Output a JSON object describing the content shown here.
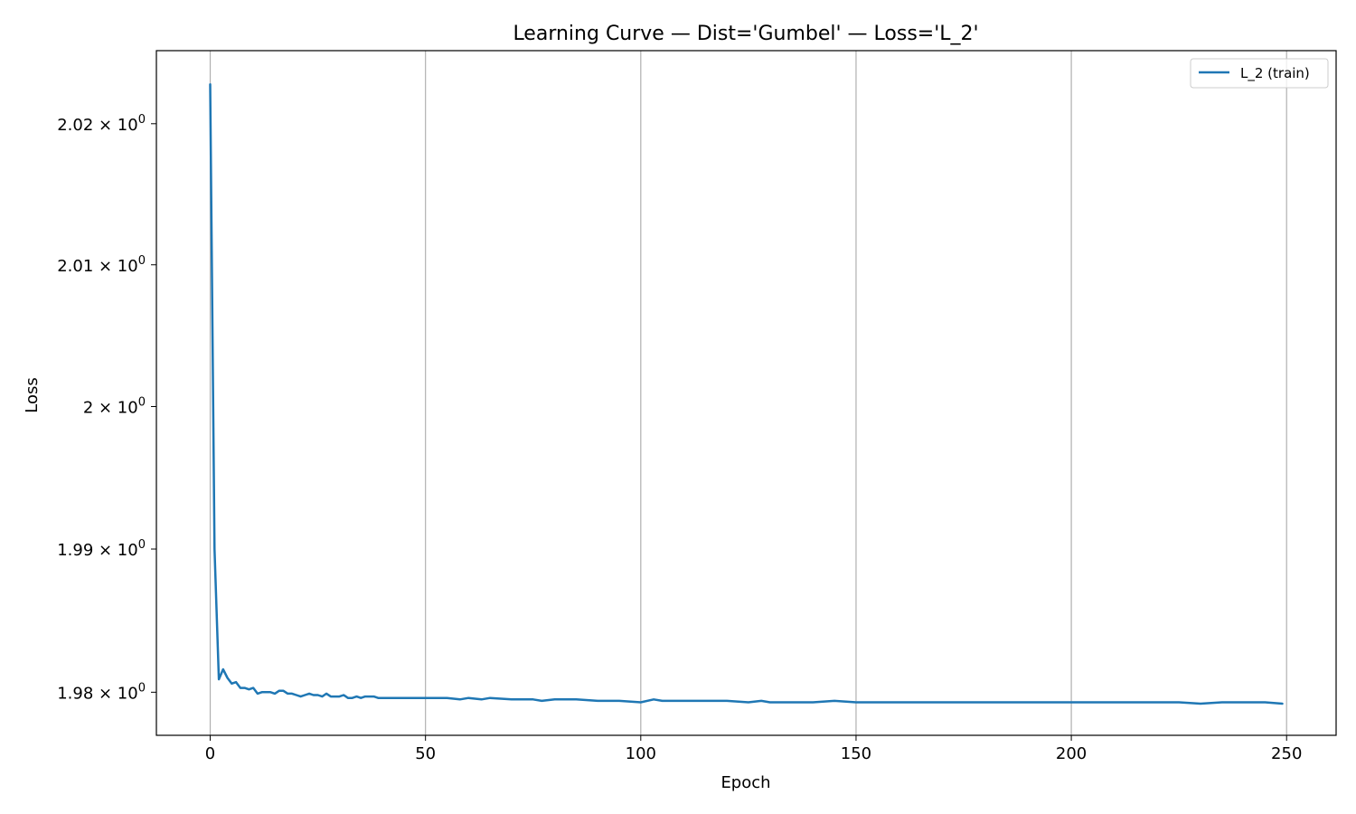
{
  "chart_data": {
    "type": "line",
    "title": "Learning Curve — Dist='Gumbel' — Loss='L_2'",
    "xlabel": "Epoch",
    "ylabel": "Loss",
    "xlim": [
      -12.5,
      261.5
    ],
    "ylim": [
      1.977,
      2.0252
    ],
    "yscale": "log",
    "grid": "x-major",
    "legend_location": "upper right",
    "x_ticks": [
      0,
      50,
      100,
      150,
      200,
      250
    ],
    "x_tick_labels": [
      "0",
      "50",
      "100",
      "150",
      "200",
      "250"
    ],
    "y_ticks": [
      1.98,
      1.99,
      2.0,
      2.01,
      2.02
    ],
    "y_tick_labels": [
      {
        "mantissa": "1.98",
        "base": "10",
        "exp": "0"
      },
      {
        "mantissa": "1.99",
        "base": "10",
        "exp": "0"
      },
      {
        "mantissa": "2",
        "base": "10",
        "exp": "0"
      },
      {
        "mantissa": "2.01",
        "base": "10",
        "exp": "0"
      },
      {
        "mantissa": "2.02",
        "base": "10",
        "exp": "0"
      }
    ],
    "colors": {
      "series": "#1f77b4",
      "grid": "#b0b0b0"
    },
    "series": [
      {
        "name": "L_2 (train)",
        "x": [
          0,
          1,
          2,
          3,
          4,
          5,
          6,
          7,
          8,
          9,
          10,
          11,
          12,
          13,
          14,
          15,
          16,
          17,
          18,
          19,
          20,
          21,
          22,
          23,
          24,
          25,
          26,
          27,
          28,
          29,
          30,
          31,
          32,
          33,
          34,
          35,
          36,
          37,
          38,
          39,
          40,
          45,
          50,
          55,
          58,
          60,
          63,
          65,
          70,
          75,
          77,
          80,
          85,
          90,
          95,
          100,
          103,
          105,
          110,
          115,
          120,
          125,
          128,
          130,
          140,
          145,
          150,
          155,
          160,
          165,
          170,
          175,
          180,
          185,
          190,
          195,
          200,
          205,
          210,
          215,
          220,
          225,
          230,
          235,
          240,
          245,
          249
        ],
        "y": [
          2.0228,
          1.99,
          1.9809,
          1.9816,
          1.981,
          1.9806,
          1.9807,
          1.9803,
          1.9803,
          1.9802,
          1.9803,
          1.9799,
          1.98,
          1.98,
          1.98,
          1.9799,
          1.9801,
          1.9801,
          1.9799,
          1.9799,
          1.9798,
          1.9797,
          1.9798,
          1.9799,
          1.9798,
          1.9798,
          1.9797,
          1.9799,
          1.9797,
          1.9797,
          1.9797,
          1.9798,
          1.9796,
          1.9796,
          1.9797,
          1.9796,
          1.9797,
          1.9797,
          1.9797,
          1.9796,
          1.9796,
          1.9796,
          1.9796,
          1.9796,
          1.9795,
          1.9796,
          1.9795,
          1.9796,
          1.9795,
          1.9795,
          1.9794,
          1.9795,
          1.9795,
          1.9794,
          1.9794,
          1.9793,
          1.9795,
          1.9794,
          1.9794,
          1.9794,
          1.9794,
          1.9793,
          1.9794,
          1.9793,
          1.9793,
          1.9794,
          1.9793,
          1.9793,
          1.9793,
          1.9793,
          1.9793,
          1.9793,
          1.9793,
          1.9793,
          1.9793,
          1.9793,
          1.9793,
          1.9793,
          1.9793,
          1.9793,
          1.9793,
          1.9793,
          1.9792,
          1.9793,
          1.9793,
          1.9793,
          1.9792
        ]
      }
    ]
  }
}
